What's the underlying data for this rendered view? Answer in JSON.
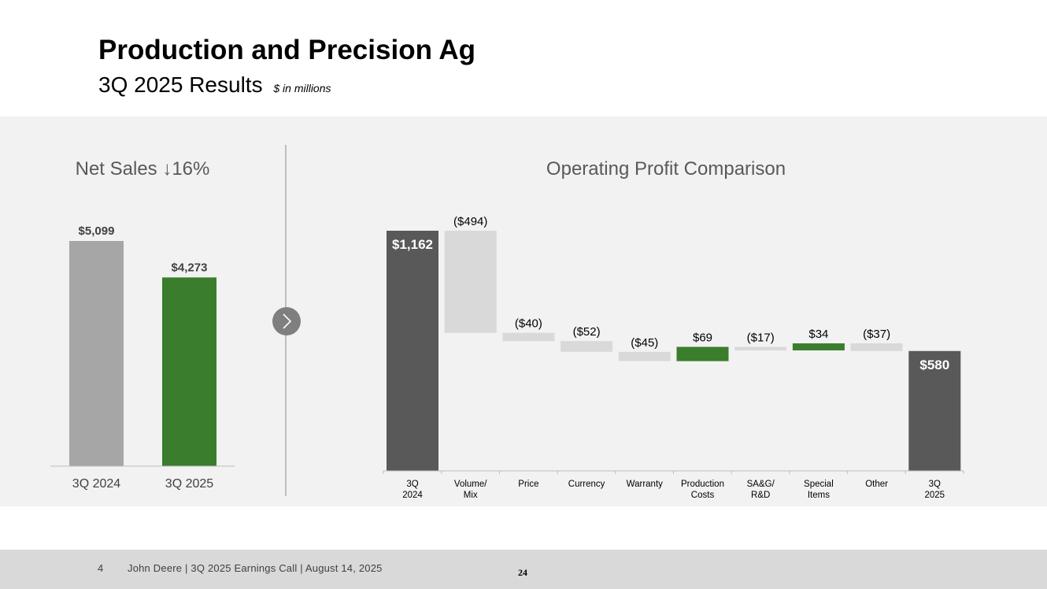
{
  "header": {
    "title": "Production and Precision Ag",
    "subtitle": "3Q 2025 Results",
    "units_note": "$ in millions"
  },
  "colors": {
    "panel_bg": "#f2f2f2",
    "gray_bar": "#a6a6a6",
    "dark_bar": "#595959",
    "green": "#3a7d2c",
    "neg_bar": "#d9d9d9",
    "axis": "#bfbfbf"
  },
  "chart_data": [
    {
      "type": "bar",
      "title": "Net Sales ↓16%",
      "categories": [
        "3Q 2024",
        "3Q 2025"
      ],
      "values": [
        5099,
        4273
      ],
      "value_labels": [
        "$5,099",
        "$4,273"
      ],
      "bar_colors": [
        "#a6a6a6",
        "#3a7d2c"
      ],
      "ylim": [
        0,
        5099
      ]
    },
    {
      "type": "waterfall",
      "title": "Operating Profit Comparison",
      "categories": [
        "3Q 2024",
        "Volume/ Mix",
        "Price",
        "Currency",
        "Warranty",
        "Production Costs",
        "SA&G/ R&D",
        "Special Items",
        "Other",
        "3Q 2025"
      ],
      "values": [
        1162,
        -494,
        -40,
        -52,
        -45,
        69,
        -17,
        34,
        -37,
        580
      ],
      "kinds": [
        "total",
        "delta",
        "delta",
        "delta",
        "delta",
        "delta",
        "delta",
        "delta",
        "delta",
        "total"
      ],
      "value_labels": [
        "$1,162",
        "($494)",
        "($40)",
        "($52)",
        "($45)",
        "$69",
        "($17)",
        "$34",
        "($37)",
        "$580"
      ],
      "ylim": [
        0,
        1162
      ]
    }
  ],
  "chevron_icon": "chevron-right-icon",
  "footer": {
    "page": "4",
    "text": "John Deere | 3Q 2025 Earnings Call | August 14, 2025",
    "number": "24"
  }
}
